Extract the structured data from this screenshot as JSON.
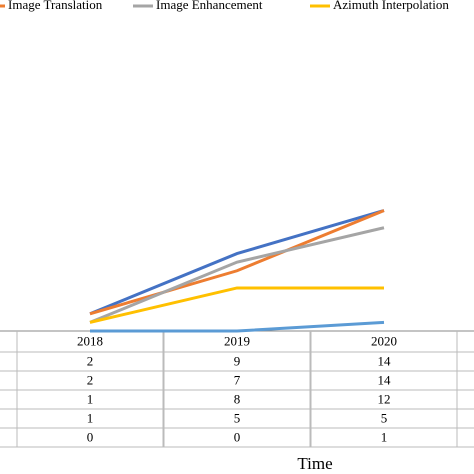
{
  "chart_data": {
    "type": "line",
    "x_label": "Time",
    "categories": [
      "2018",
      "2019",
      "2020"
    ],
    "series": [
      {
        "color": "#4472c4",
        "values": [
          2,
          9,
          14
        ]
      },
      {
        "name": "Image Translation",
        "color": "#ed7d31",
        "values": [
          2,
          7,
          14
        ]
      },
      {
        "name": "Image Enhancement",
        "color": "#a5a5a5",
        "values": [
          1,
          8,
          12
        ]
      },
      {
        "name": "Azimuth Interpolation",
        "color": "#ffc000",
        "values": [
          1,
          5,
          5
        ]
      },
      {
        "color": "#5b9bd5",
        "values": [
          0,
          0,
          1
        ]
      }
    ],
    "ylim": [
      0,
      38
    ]
  }
}
